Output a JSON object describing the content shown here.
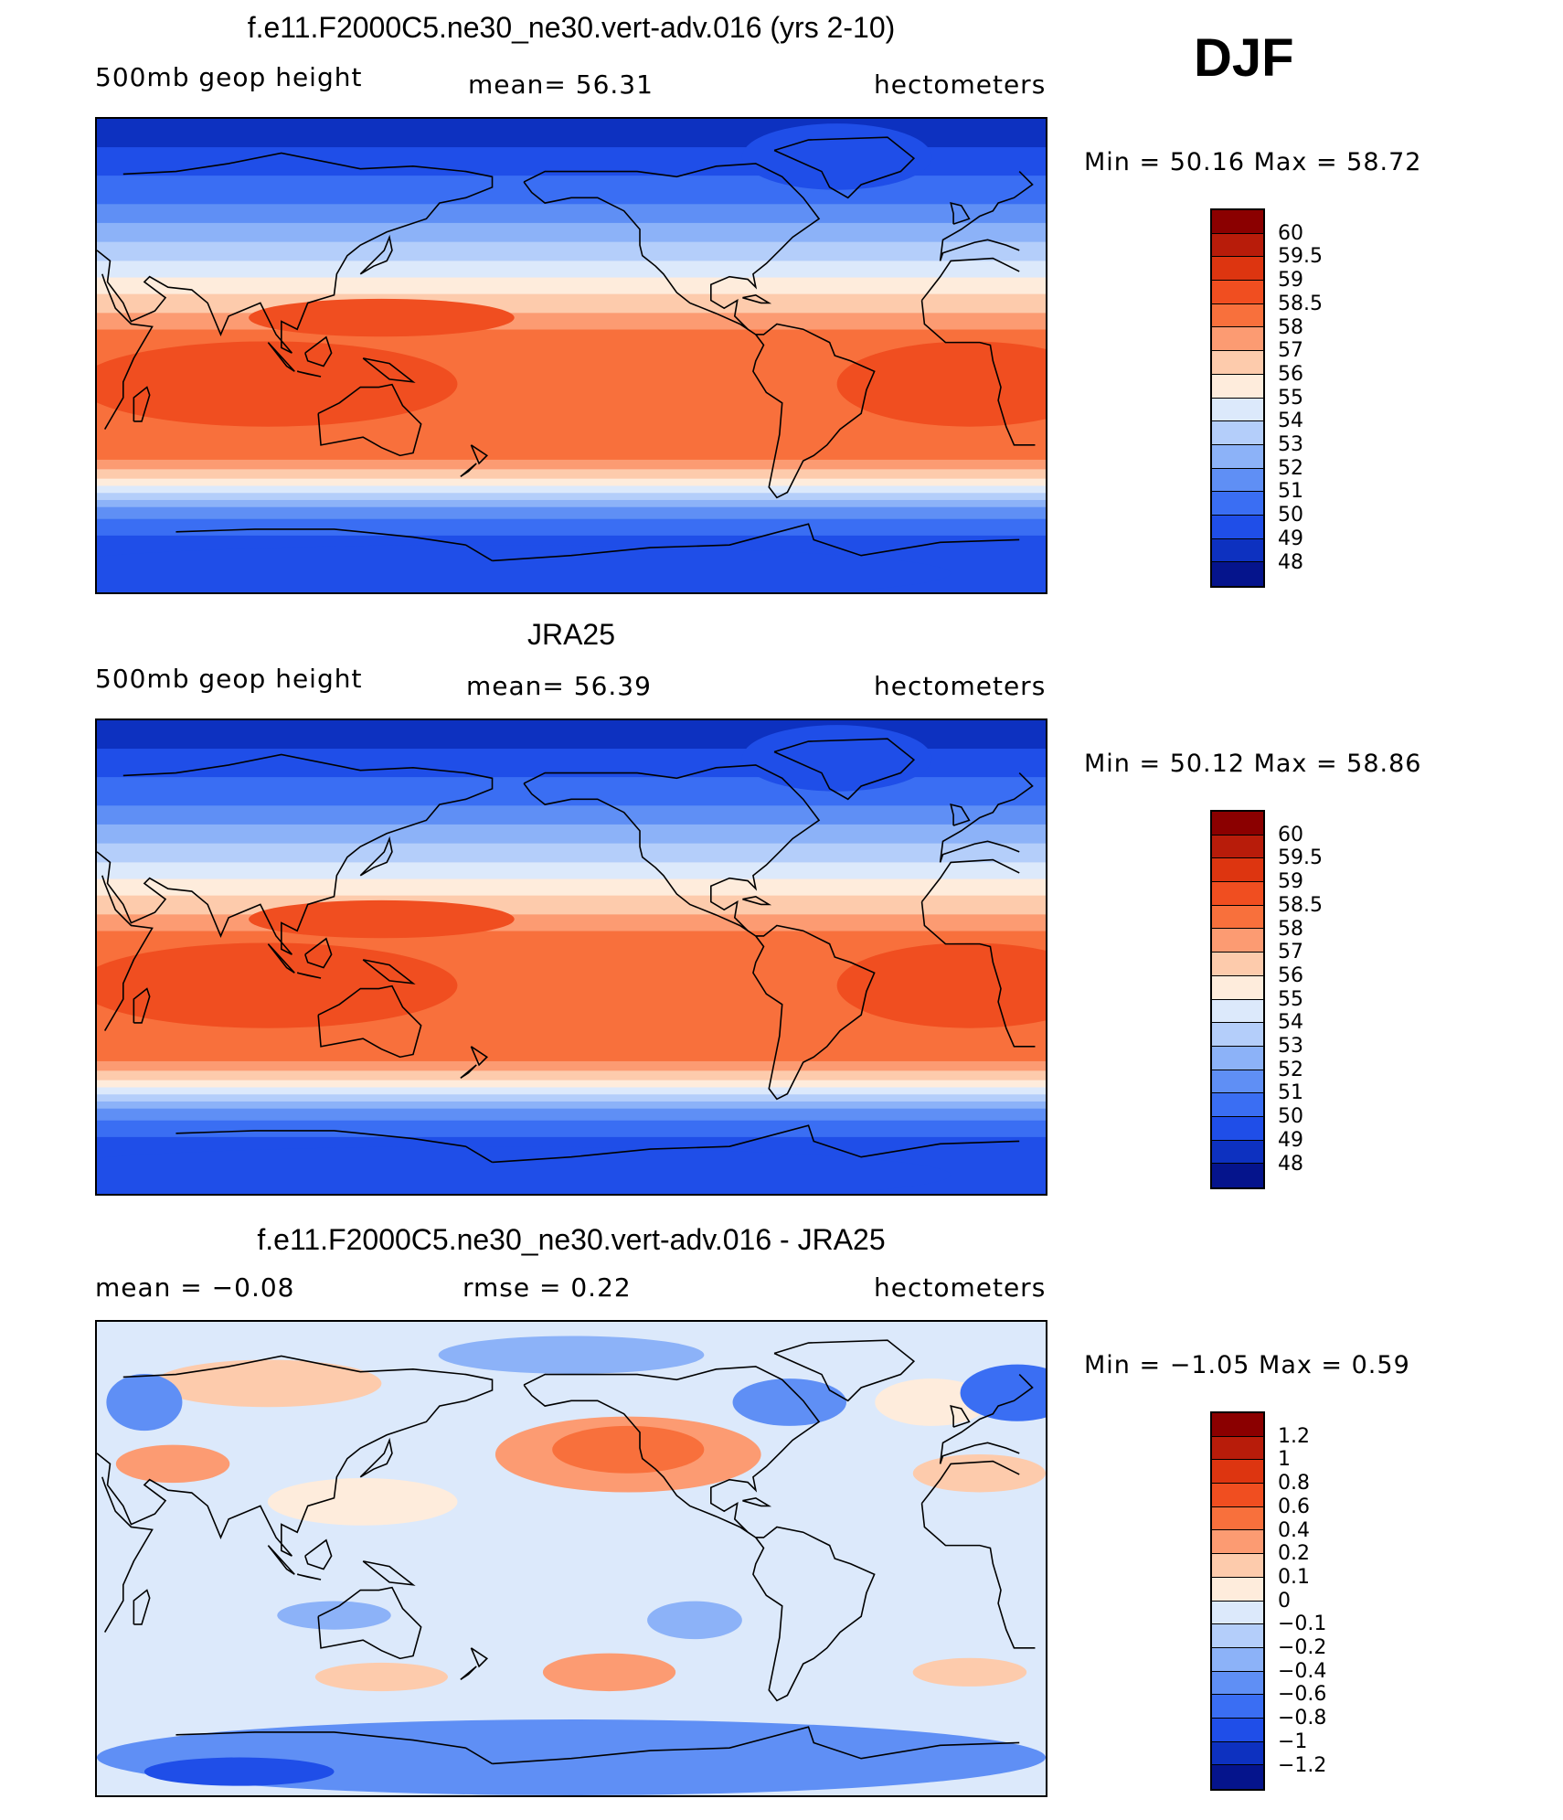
{
  "header": {
    "season": "DJF"
  },
  "panels": [
    {
      "id": "model",
      "title": "f.e11.F2000C5.ne30_ne30.vert-adv.016 (yrs 2-10)",
      "left_label": "500mb geop height",
      "center_label": "mean=   56.31",
      "right_label": "hectometers",
      "minmax": "Min =    50.16  Max =    58.72",
      "colorbar": {
        "labels": [
          "60",
          "59.5",
          "59",
          "58.5",
          "58",
          "57",
          "56",
          "55",
          "54",
          "53",
          "52",
          "51",
          "50",
          "49",
          "48"
        ],
        "colors": [
          "#8b0000",
          "#b81c0a",
          "#dd3510",
          "#f04e20",
          "#f8703c",
          "#fc9b72",
          "#fdcbac",
          "#feecdc",
          "#dce9fb",
          "#b4cefa",
          "#8cb2f8",
          "#5f8ff5",
          "#3a6ef3",
          "#1f4ee8",
          "#0d31c0",
          "#05148c"
        ]
      },
      "field": "full"
    },
    {
      "id": "obs",
      "title": "JRA25",
      "left_label": "500mb geop height",
      "center_label": "mean=   56.39",
      "right_label": "hectometers",
      "minmax": "Min =    50.12  Max =    58.86",
      "colorbar": {
        "labels": [
          "60",
          "59.5",
          "59",
          "58.5",
          "58",
          "57",
          "56",
          "55",
          "54",
          "53",
          "52",
          "51",
          "50",
          "49",
          "48"
        ],
        "colors": [
          "#8b0000",
          "#b81c0a",
          "#dd3510",
          "#f04e20",
          "#f8703c",
          "#fc9b72",
          "#fdcbac",
          "#feecdc",
          "#dce9fb",
          "#b4cefa",
          "#8cb2f8",
          "#5f8ff5",
          "#3a6ef3",
          "#1f4ee8",
          "#0d31c0",
          "#05148c"
        ]
      },
      "field": "full"
    },
    {
      "id": "diff",
      "title": "f.e11.F2000C5.ne30_ne30.vert-adv.016 - JRA25",
      "left_label": "mean =   −0.08",
      "center_label": "rmse =    0.22",
      "right_label": "hectometers",
      "minmax": "Min =   −1.05  Max =     0.59",
      "colorbar": {
        "labels": [
          "1.2",
          "1",
          "0.8",
          "0.6",
          "0.4",
          "0.2",
          "0.1",
          "0",
          "−0.1",
          "−0.2",
          "−0.4",
          "−0.6",
          "−0.8",
          "−1",
          "−1.2"
        ],
        "colors": [
          "#8b0000",
          "#b81c0a",
          "#dd3510",
          "#f04e20",
          "#f8703c",
          "#fc9b72",
          "#fdcbac",
          "#feecdc",
          "#dce9fb",
          "#b4cefa",
          "#8cb2f8",
          "#5f8ff5",
          "#3a6ef3",
          "#1f4ee8",
          "#0d31c0",
          "#05148c"
        ]
      },
      "field": "diff"
    }
  ]
}
